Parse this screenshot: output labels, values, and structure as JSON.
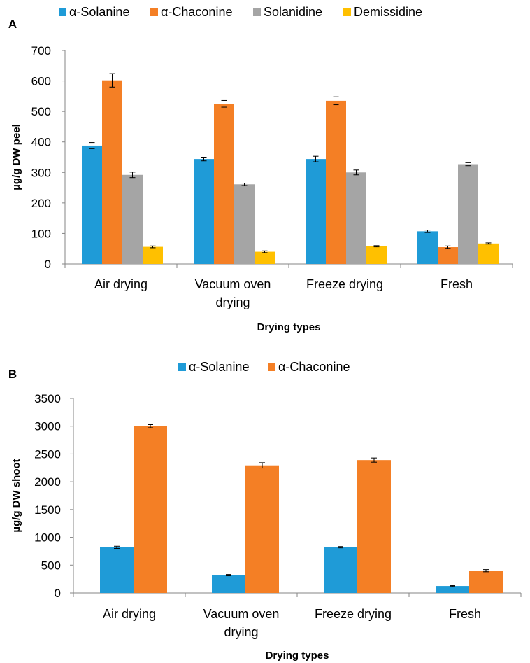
{
  "chart_data": [
    {
      "panel": "A",
      "type": "bar",
      "categories": [
        "Air drying",
        "Vacuum oven drying",
        "Freeze drying",
        "Fresh"
      ],
      "category_lines": [
        [
          "Air drying"
        ],
        [
          "Vacuum oven",
          "drying"
        ],
        [
          "Freeze drying"
        ],
        [
          "Fresh"
        ]
      ],
      "series": [
        {
          "name": "α-Solanine",
          "color": "#1f9bd7",
          "values": [
            388,
            344,
            344,
            107
          ],
          "errors": [
            10,
            6,
            9,
            4
          ]
        },
        {
          "name": "α-Chaconine",
          "color": "#f47f25",
          "values": [
            602,
            525,
            535,
            55
          ],
          "errors": [
            22,
            11,
            13,
            4
          ]
        },
        {
          "name": "Solanidine",
          "color": "#a5a5a5",
          "values": [
            292,
            261,
            300,
            327
          ],
          "errors": [
            9,
            4,
            8,
            5
          ]
        },
        {
          "name": "Demissidine",
          "color": "#ffc000",
          "values": [
            56,
            40,
            58,
            67
          ],
          "errors": [
            3,
            3,
            2,
            2
          ]
        }
      ],
      "xlabel": "Drying types",
      "ylabel": "µg/g DW peel",
      "ylim": [
        0,
        700
      ],
      "yticks": [
        0,
        100,
        200,
        300,
        400,
        500,
        600,
        700
      ],
      "grid": false,
      "legend": "top"
    },
    {
      "panel": "B",
      "type": "bar",
      "categories": [
        "Air drying",
        "Vacuum oven drying",
        "Freeze drying",
        "Fresh"
      ],
      "category_lines": [
        [
          "Air drying"
        ],
        [
          "Vacuum oven",
          "drying"
        ],
        [
          "Freeze drying"
        ],
        [
          "Fresh"
        ]
      ],
      "series": [
        {
          "name": "α-Solanine",
          "color": "#1f9bd7",
          "values": [
            820,
            320,
            822,
            125
          ],
          "errors": [
            20,
            12,
            12,
            8
          ]
        },
        {
          "name": "α-Chaconine",
          "color": "#f47f25",
          "values": [
            3000,
            2295,
            2390,
            400
          ],
          "errors": [
            28,
            48,
            38,
            20
          ]
        }
      ],
      "xlabel": "Drying types",
      "ylabel": "µg/g DW shoot",
      "ylim": [
        0,
        3500
      ],
      "yticks": [
        0,
        500,
        1000,
        1500,
        2000,
        2500,
        3000,
        3500
      ],
      "grid": false,
      "legend": "top"
    }
  ]
}
